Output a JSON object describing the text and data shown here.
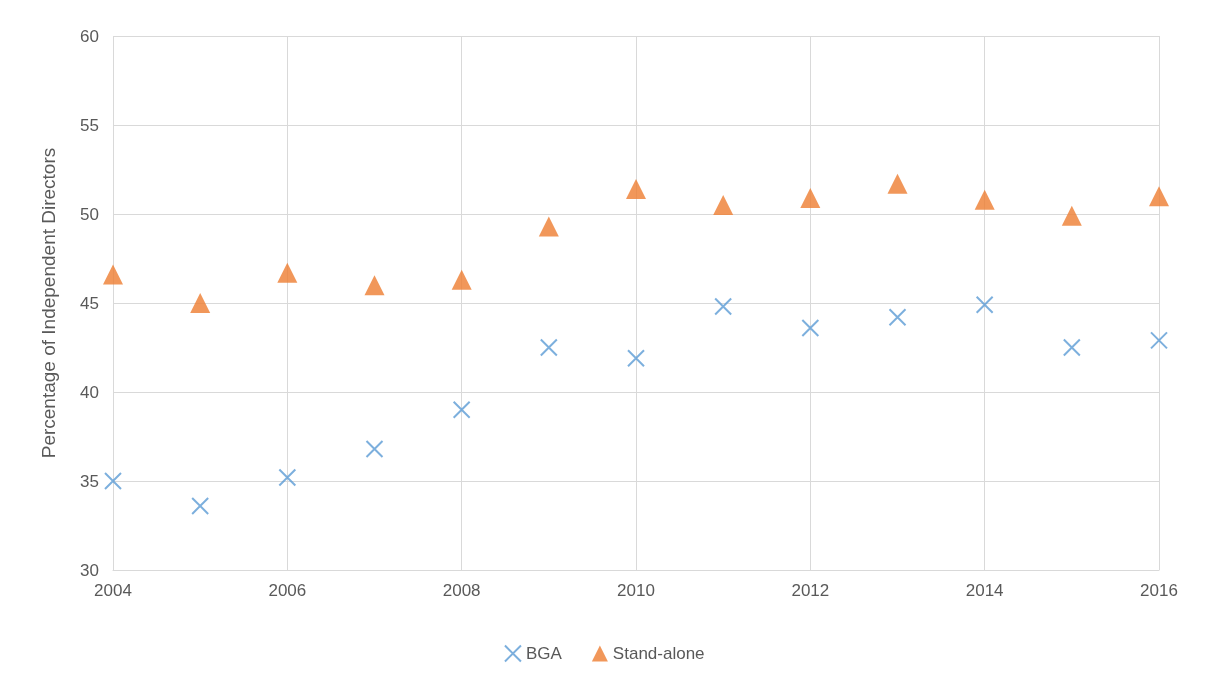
{
  "chart_data": {
    "type": "scatter",
    "ylabel": "Percentage of Independent Directors",
    "x": [
      2004,
      2005,
      2006,
      2007,
      2008,
      2009,
      2010,
      2011,
      2012,
      2013,
      2014,
      2015,
      2016
    ],
    "series": [
      {
        "name": "BGA",
        "color": "#5b9bd5",
        "marker": "cross",
        "values": [
          35.0,
          33.6,
          35.2,
          36.8,
          39.0,
          42.5,
          41.9,
          44.8,
          43.6,
          44.2,
          44.9,
          42.5,
          42.9
        ]
      },
      {
        "name": "Stand-alone",
        "color": "#ed7d31",
        "marker": "triangle",
        "values": [
          46.6,
          45.0,
          46.7,
          46.0,
          46.3,
          49.3,
          51.4,
          50.5,
          50.9,
          51.7,
          50.8,
          49.9,
          51.0
        ]
      }
    ],
    "xlim": [
      2004,
      2016
    ],
    "xticks": [
      2004,
      2006,
      2008,
      2010,
      2012,
      2014,
      2016
    ],
    "ylim": [
      30,
      60
    ],
    "yticks": [
      30,
      35,
      40,
      45,
      50,
      55,
      60
    ],
    "grid": true,
    "legend": "bottom"
  }
}
